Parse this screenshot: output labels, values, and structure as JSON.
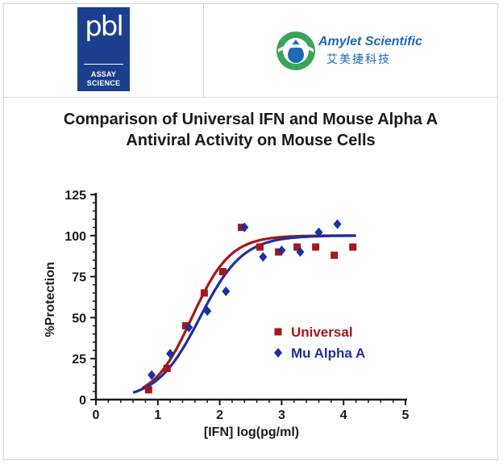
{
  "logos": {
    "pbl": {
      "mark": "pbl",
      "line1": "ASSAY",
      "line2": "SCIENCE"
    },
    "amylet": {
      "name": "Amylet Scientific",
      "chinese": "艾美捷科技"
    }
  },
  "colors": {
    "universal": "#a3181c",
    "mu_alpha": "#1c2fa3",
    "pbl_blue": "#1b3f8e",
    "amylet_green": "#3aa55a",
    "amylet_blue": "#1f68b2"
  },
  "chart_data": {
    "type": "scatter",
    "title_line1": "Comparison of Universal IFN and Mouse Alpha A",
    "title_line2": "Antiviral Activity on Mouse Cells",
    "xlabel": "[IFN] log(pg/ml)",
    "ylabel": "%Protection",
    "xlim": [
      0,
      5
    ],
    "ylim": [
      0,
      125
    ],
    "x_ticks": [
      "0",
      "1",
      "2",
      "3",
      "4",
      "5"
    ],
    "y_ticks": [
      "0",
      "25",
      "50",
      "75",
      "100",
      "125"
    ],
    "legend_position": "center-right",
    "series": [
      {
        "name": "Universal",
        "marker": "square",
        "color": "#a3181c",
        "x": [
          0.85,
          1.15,
          1.45,
          1.75,
          2.05,
          2.35,
          2.65,
          2.95,
          3.25,
          3.55,
          3.85,
          4.15
        ],
        "y": [
          6,
          19,
          45,
          65,
          78,
          105,
          93,
          90,
          93,
          93,
          88,
          93
        ],
        "fit": {
          "bottom": 0,
          "top": 100,
          "logEC50": 1.55,
          "hillslope": 1.4
        }
      },
      {
        "name": "Mu Alpha A",
        "marker": "diamond",
        "color": "#1c2fa3",
        "x": [
          0.9,
          1.2,
          1.5,
          1.8,
          2.1,
          2.4,
          2.7,
          3.0,
          3.3,
          3.6,
          3.9
        ],
        "y": [
          15,
          28,
          44,
          54,
          66,
          105,
          87,
          91,
          90,
          102,
          107
        ],
        "fit": {
          "bottom": 0,
          "top": 100,
          "logEC50": 1.68,
          "hillslope": 1.25
        }
      }
    ]
  }
}
